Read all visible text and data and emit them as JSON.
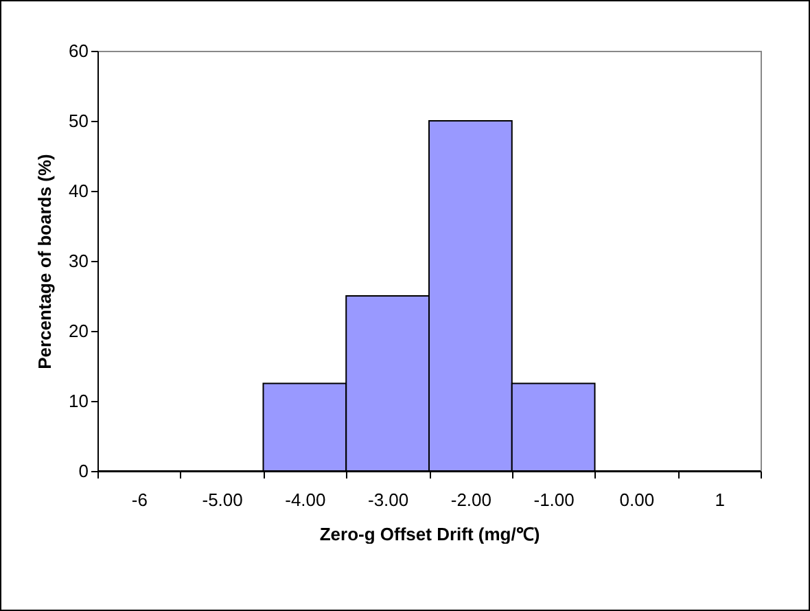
{
  "chart_data": {
    "type": "bar",
    "xlabel": "Zero-g Offset Drift (mg/℃)",
    "ylabel": "Percentage of boards (%)",
    "categories": [
      "-6",
      "-5.00",
      "-4.00",
      "-3.00",
      "-2.00",
      "-1.00",
      "0.00",
      "1"
    ],
    "values": [
      0,
      0,
      12.5,
      25,
      50,
      12.5,
      0,
      0
    ],
    "color": "#9999ff",
    "ylim": [
      0,
      60
    ],
    "yticks": [
      0,
      10,
      20,
      30,
      40,
      50,
      60
    ],
    "grid": false
  }
}
